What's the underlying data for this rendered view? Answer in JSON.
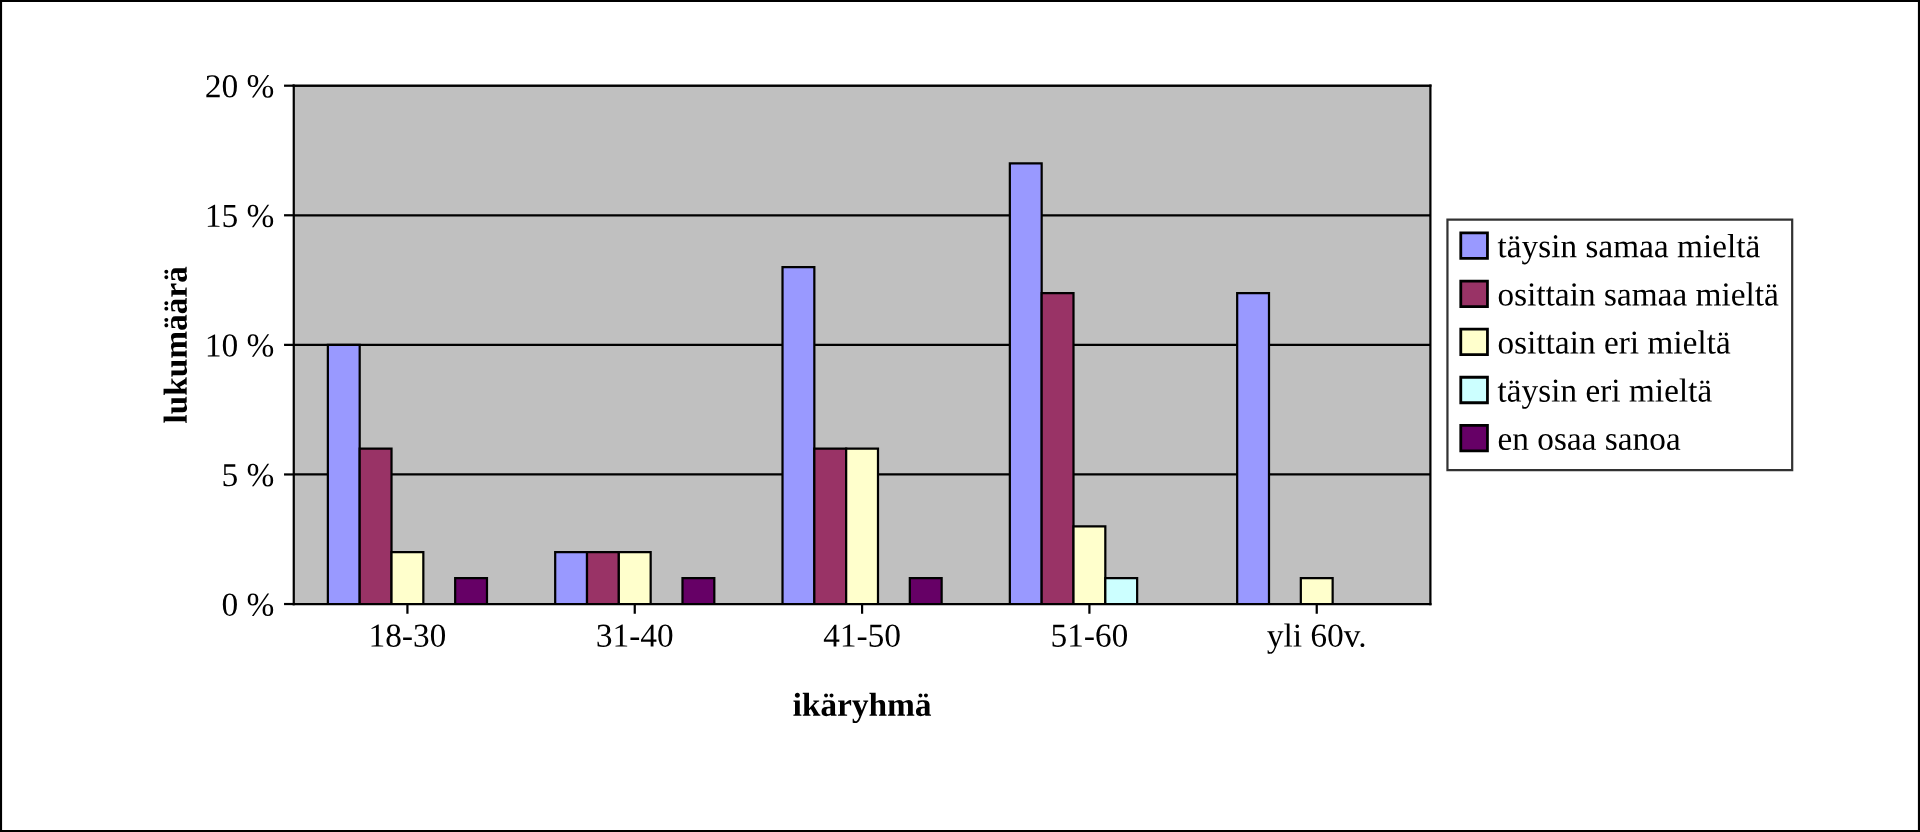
{
  "chart_data": {
    "type": "bar",
    "xlabel": "ikäryhmä",
    "ylabel": "lukumäärä",
    "categories": [
      "18-30",
      "31-40",
      "41-50",
      "51-60",
      "yli 60v."
    ],
    "series": [
      {
        "name": "täysin samaa mieltä",
        "color": "#9999ff",
        "values": [
          10,
          2,
          13,
          17,
          12
        ]
      },
      {
        "name": "osittain samaa mieltä",
        "color": "#993366",
        "values": [
          6,
          2,
          6,
          12,
          0
        ]
      },
      {
        "name": "osittain eri mieltä",
        "color": "#ffffcc",
        "values": [
          2,
          2,
          6,
          3,
          1
        ]
      },
      {
        "name": "täysin eri mieltä",
        "color": "#ccffff",
        "values": [
          0,
          0,
          0,
          1,
          0
        ]
      },
      {
        "name": "en osaa sanoa",
        "color": "#660066",
        "values": [
          1,
          1,
          1,
          0,
          0
        ]
      }
    ],
    "ylim": [
      0,
      20
    ],
    "yticks": [
      {
        "value": 0,
        "label": "0 %"
      },
      {
        "value": 5,
        "label": "5 %"
      },
      {
        "value": 10,
        "label": "10 %"
      },
      {
        "value": 15,
        "label": "15 %"
      },
      {
        "value": 20,
        "label": "20 %"
      }
    ],
    "grid": "y",
    "legend": "right"
  }
}
